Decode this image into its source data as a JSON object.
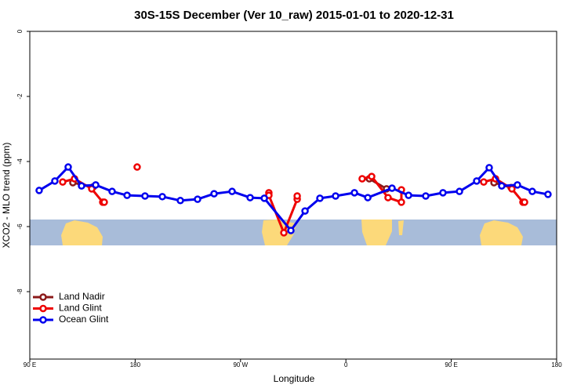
{
  "chart_data": {
    "type": "line",
    "title": "30S-15S December (Ver 10_raw)   2015-01-01 to 2020-12-31",
    "x_label": "Longitude",
    "y_label": "XCO2 - MLO trend (ppm)",
    "xlim": [
      90,
      540
    ],
    "ylim": [
      -10,
      0
    ],
    "xticks": [
      {
        "value": 90,
        "label": "90 E"
      },
      {
        "value": 180,
        "label": "180"
      },
      {
        "value": 270,
        "label": "90 W"
      },
      {
        "value": 360,
        "label": "0"
      },
      {
        "value": 450,
        "label": "90 E"
      },
      {
        "value": 540,
        "label": "180"
      }
    ],
    "yticks": [
      0,
      -2,
      -4,
      -6,
      -8
    ],
    "legend": "bottom-left",
    "series": [
      {
        "name": "Land Nadir",
        "color": "#8b1a1a",
        "x": [
          126.8,
          144.2,
          null,
          380.0,
          394.7,
          null,
          486.5,
          501.1
        ],
        "values": [
          -4.65,
          -4.78,
          null,
          -4.53,
          -4.84,
          null,
          -4.65,
          -4.8
        ]
      },
      {
        "name": "Land Glint",
        "color": "#ee0000",
        "x": [
          118.1,
          128.2,
          142.9,
          152.3,
          153.6,
          null,
          181.7,
          null,
          294.2,
          294.2,
          307.0,
          318.4,
          318.4,
          null,
          373.9,
          382.0,
          396.0,
          407.4,
          407.4,
          null,
          477.7,
          487.8,
          501.8,
          511.2,
          512.6
        ],
        "values": [
          -4.63,
          -4.53,
          -4.84,
          -5.25,
          -5.25,
          null,
          -4.17,
          null,
          -4.96,
          -5.04,
          -6.19,
          -5.16,
          -5.06,
          null,
          -4.53,
          -4.46,
          -5.11,
          -5.25,
          -4.87,
          null,
          -4.63,
          -4.53,
          -4.84,
          -5.25,
          -5.25
        ]
      },
      {
        "name": "Ocean Glint",
        "color": "#0000ee",
        "x": [
          98.0,
          111.4,
          122.8,
          134.2,
          146.3,
          160.3,
          173.1,
          188.4,
          203.2,
          218.6,
          233.3,
          247.4,
          262.8,
          278.2,
          290.3,
          313.0,
          325.1,
          337.8,
          351.2,
          367.3,
          378.7,
          399.4,
          413.5,
          428.2,
          442.9,
          457.0,
          471.7,
          482.4,
          493.1,
          506.5,
          519.2,
          532.6
        ],
        "values": [
          -4.89,
          -4.6,
          -4.17,
          -4.75,
          -4.72,
          -4.92,
          -5.04,
          -5.06,
          -5.08,
          -5.2,
          -5.16,
          -4.99,
          -4.92,
          -5.11,
          -5.13,
          -6.12,
          -5.52,
          -5.13,
          -5.06,
          -4.96,
          -5.11,
          -4.82,
          -5.04,
          -5.06,
          -4.96,
          -4.92,
          -4.6,
          -4.19,
          -4.75,
          -4.72,
          -4.92,
          -5.01
        ]
      }
    ]
  }
}
